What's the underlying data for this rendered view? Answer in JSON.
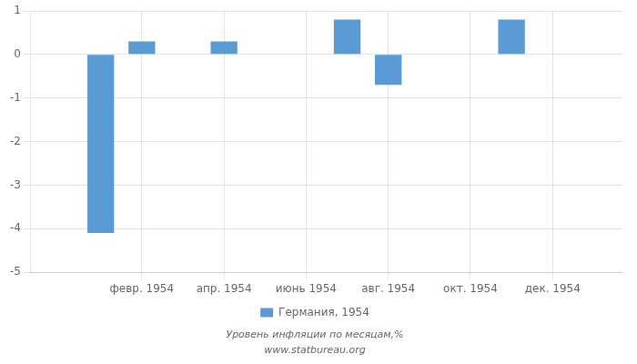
{
  "chart_data": {
    "type": "bar",
    "subtitle": "Уровень инфляции по месяцам,%",
    "source": "www.statbureau.org",
    "x": [
      1,
      2,
      3,
      4,
      5,
      6,
      7,
      8,
      9,
      10,
      11,
      12
    ],
    "series": [
      {
        "name": "Германия, 1954",
        "color": "#5b9bd5",
        "values": [
          -4.1,
          0.3,
          0.0,
          0.3,
          0.0,
          0.0,
          0.8,
          -0.7,
          0.0,
          0.0,
          0.8,
          0.0
        ]
      }
    ],
    "xlim": [
      0.5,
      12.5
    ],
    "xticks": [
      {
        "value": 2,
        "label": "февр. 1954"
      },
      {
        "value": 4,
        "label": "апр. 1954"
      },
      {
        "value": 6,
        "label": "июнь 1954"
      },
      {
        "value": 8,
        "label": "авг. 1954"
      },
      {
        "value": 10,
        "label": "окт. 1954"
      },
      {
        "value": 12,
        "label": "дек. 1954"
      }
    ],
    "ylim": [
      -5,
      1
    ],
    "yticks": [
      -5,
      -4,
      -3,
      -2,
      -1,
      0,
      1
    ],
    "grid": true,
    "legend": "bottom"
  }
}
